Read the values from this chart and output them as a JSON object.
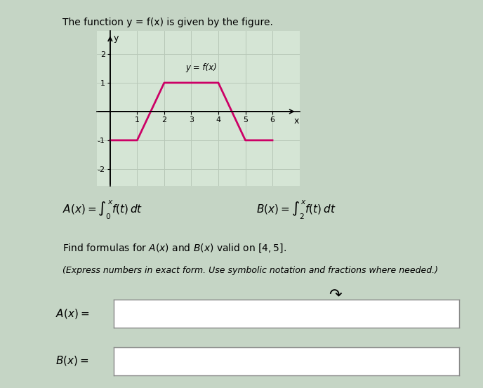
{
  "title": "The function y = f(x) is given by the figure.",
  "graph_label": "y = f(x)",
  "func_x": [
    0,
    1,
    2,
    4,
    5,
    6
  ],
  "func_y": [
    -1,
    -1,
    1,
    1,
    -1,
    -1
  ],
  "line_color": "#CC0066",
  "line_width": 2.0,
  "xlim": [
    -0.5,
    7.0
  ],
  "ylim": [
    -2.6,
    2.8
  ],
  "xticks": [
    1,
    2,
    3,
    4,
    5,
    6
  ],
  "yticks": [
    -2,
    -1,
    1,
    2
  ],
  "xlabel": "x",
  "ylabel": "y",
  "grid_color": "#b8c8b8",
  "fig_bg": "#c5d5c5",
  "box_bg": "#d5e5d5",
  "white": "#ffffff",
  "black": "#000000",
  "gray": "#888888"
}
